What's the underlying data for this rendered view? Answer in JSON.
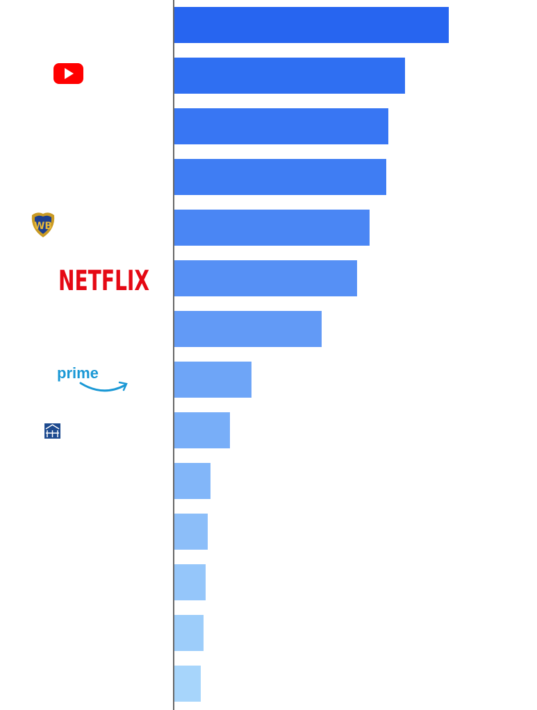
{
  "chart_data": {
    "type": "bar",
    "orientation": "horizontal",
    "categories": [
      null,
      null,
      null,
      null,
      null,
      "NETFLIX",
      null,
      "prime",
      null,
      null,
      null,
      null,
      null,
      null
    ],
    "values": [
      396,
      333,
      309,
      306,
      282,
      264,
      213,
      112,
      81,
      53,
      49,
      46,
      43,
      39
    ],
    "colors": [
      "#2765f0",
      "#2f6ff2",
      "#3876f3",
      "#3f7df3",
      "#4a86f4",
      "#5690f5",
      "#629af6",
      "#6ea5f7",
      "#78aef8",
      "#82b6f9",
      "#8cbef9",
      "#95c6fa",
      "#9dcdfa",
      "#a7d5fb"
    ],
    "xlim": [
      0,
      523
    ]
  }
}
